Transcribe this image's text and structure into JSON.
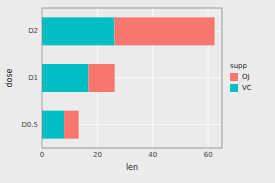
{
  "chart_data": {
    "type": "bar",
    "orientation": "horizontal",
    "stacked": true,
    "categories": [
      "D2",
      "D1",
      "D0.5"
    ],
    "series": [
      {
        "name": "VC",
        "color": "#00BFC4",
        "values": [
          26.14,
          16.77,
          7.98
        ]
      },
      {
        "name": "OJ",
        "color": "#F8766D",
        "values": [
          36.17,
          9.47,
          5.25
        ]
      }
    ],
    "xlabel": "len",
    "ylabel": "dose",
    "legend_title": "supp",
    "xlim": [
      0,
      65
    ],
    "xticks": [
      0,
      20,
      40,
      60
    ],
    "grid": true,
    "legend": "right"
  }
}
